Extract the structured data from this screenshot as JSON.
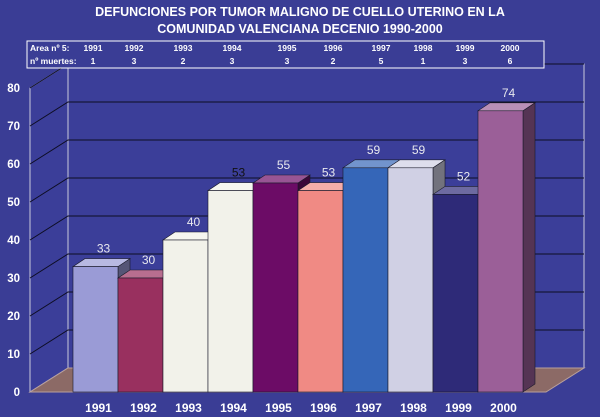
{
  "title_lines": [
    "DEFUNCIONES POR TUMOR MALIGNO DE CUELLO UTERINO EN LA",
    "COMUNIDAD VALENCIANA   DECENIO 1990-2000"
  ],
  "data_table": {
    "row_headers": [
      "Area nº 5:",
      "nº muertes:"
    ],
    "years": [
      "1991",
      "1992",
      "1993",
      "1994",
      "1995",
      "1996",
      "1997",
      "1998",
      "1999",
      "2000"
    ],
    "deaths": [
      "1",
      "3",
      "2",
      "3",
      "3",
      "2",
      "5",
      "1",
      "3",
      "6"
    ]
  },
  "chart_data": {
    "type": "bar",
    "title": "DEFUNCIONES POR TUMOR MALIGNO DE CUELLO UTERINO EN LA COMUNIDAD VALENCIANA   DECENIO 1990-2000",
    "categories": [
      "1991",
      "1992",
      "1993",
      "1994",
      "1995",
      "1996",
      "1997",
      "1998",
      "1999",
      "2000"
    ],
    "values": [
      33,
      30,
      40,
      53,
      55,
      53,
      59,
      59,
      52,
      74
    ],
    "data_labels": [
      "33",
      "30",
      "40",
      "53",
      "55",
      "53",
      "59",
      "59",
      "52",
      "74"
    ],
    "y_ticks": [
      "0",
      "10",
      "20",
      "30",
      "40",
      "50",
      "60",
      "70",
      "80"
    ],
    "ylim": [
      0,
      80
    ],
    "grid": true,
    "legend": "none",
    "bar_colors": [
      "#9a9bd6",
      "#99305f",
      "#f2f2ea",
      "#f2f2ea",
      "#6c0c66",
      "#f08a84",
      "#3566b8",
      "#d0d0e4",
      "#2e2a78",
      "#9b5f98"
    ],
    "label_colors": [
      "#e8e8ee",
      "#e8e8ee",
      "#e8e8ee",
      "#111111",
      "#e8e8ee",
      "#e8e8ee",
      "#e8e8ee",
      "#e8e8ee",
      "#e8e8ee",
      "#e8e8ee"
    ]
  }
}
